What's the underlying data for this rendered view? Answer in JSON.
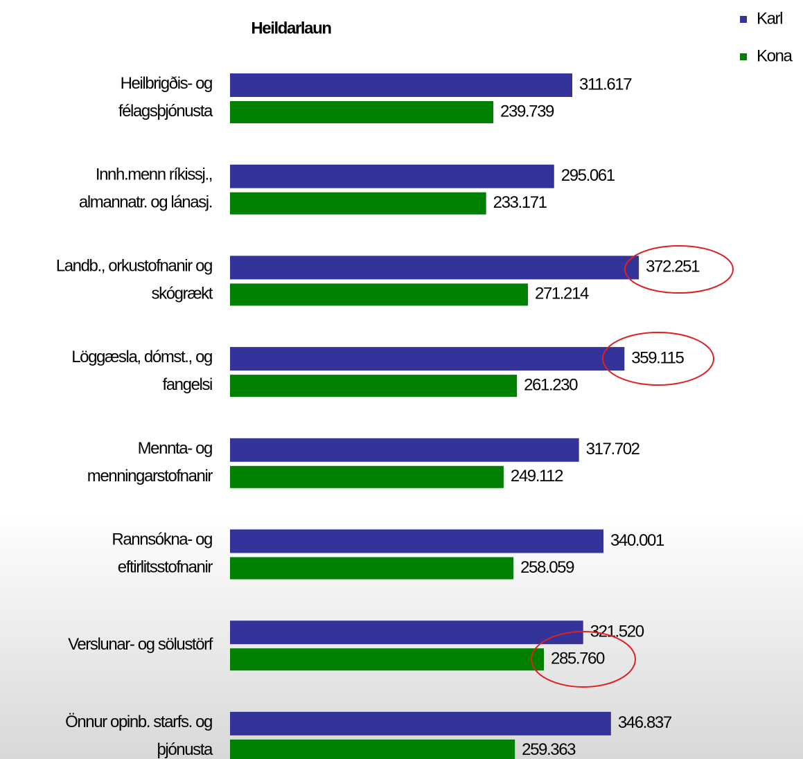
{
  "chart_data": {
    "type": "bar",
    "orientation": "horizontal",
    "title": "Heildarlaun",
    "categories": [
      [
        "Heilbrigðis- og",
        "félagsþjónusta"
      ],
      [
        "Innh.menn ríkissj.,",
        "almannatr. og lánasj."
      ],
      [
        "Landb., orkustofnanir og",
        "skógrækt"
      ],
      [
        "Löggæsla, dómst., og",
        "fangelsi"
      ],
      [
        "Mennta- og",
        "menningarstofnanir"
      ],
      [
        "Rannsókna- og",
        "eftirlitsstofnanir"
      ],
      [
        "Verslunar- og sölustörf"
      ],
      [
        "Önnur opinb. starfs. og",
        "þjónusta"
      ]
    ],
    "series": [
      {
        "name": "Karl",
        "color": "#333399",
        "values": [
          311617,
          295061,
          372251,
          359115,
          317702,
          340001,
          321520,
          346837
        ],
        "value_labels": [
          "311.617",
          "295.061",
          "372.251",
          "359.115",
          "317.702",
          "340.001",
          "321.520",
          "346.837"
        ]
      },
      {
        "name": "Kona",
        "color": "#008000",
        "values": [
          239739,
          233171,
          271214,
          261230,
          249112,
          258059,
          285760,
          259363
        ],
        "value_labels": [
          "239.739",
          "233.171",
          "271.214",
          "261.230",
          "249.112",
          "258.059",
          "285.760",
          "259.363"
        ]
      }
    ]
  }
}
